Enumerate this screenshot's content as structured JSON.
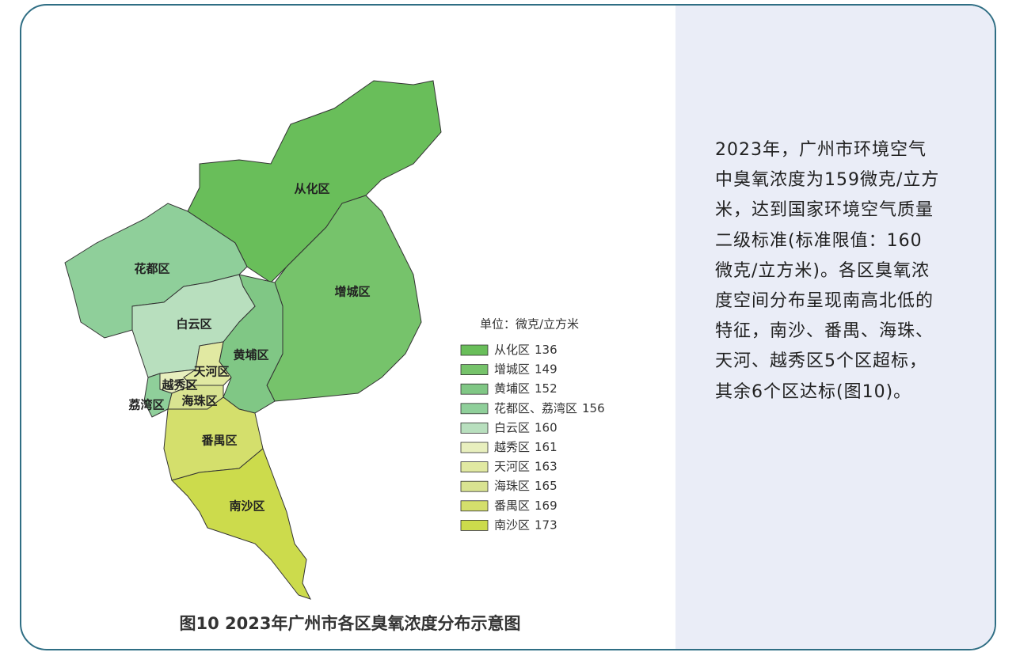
{
  "regions": [
    {
      "name": "从化区",
      "color": "#69be5a"
    },
    {
      "name": "增城区",
      "color": "#76c36b"
    },
    {
      "name": "黄埔区",
      "color": "#80c785"
    },
    {
      "name": "花都区",
      "color": "#8fcf9a"
    },
    {
      "name": "白云区",
      "color": "#b8dfbe"
    },
    {
      "name": "天河区",
      "color": "#e1e9a2"
    },
    {
      "name": "越秀区",
      "color": "#e8efbe"
    },
    {
      "name": "荔湾区",
      "color": "#8fcf9a"
    },
    {
      "name": "海珠区",
      "color": "#d9e391"
    },
    {
      "name": "番禺区",
      "color": "#d4df6c"
    },
    {
      "name": "南沙区",
      "color": "#ccdb4c"
    }
  ],
  "legend_unit": "单位：微克/立方米",
  "legend": [
    {
      "label": "从化区",
      "value": 136,
      "color": "#69be5a"
    },
    {
      "label": "增城区",
      "value": 149,
      "color": "#76c36b"
    },
    {
      "label": "黄埔区",
      "value": 152,
      "color": "#80c785"
    },
    {
      "label": "花都区、荔湾区",
      "value": 156,
      "color": "#8fcf9a"
    },
    {
      "label": "白云区",
      "value": 160,
      "color": "#b8dfbe"
    },
    {
      "label": "越秀区",
      "value": 161,
      "color": "#e8efbe"
    },
    {
      "label": "天河区",
      "value": 163,
      "color": "#e1e9a2"
    },
    {
      "label": "海珠区",
      "value": 165,
      "color": "#d9e391"
    },
    {
      "label": "番禺区",
      "value": 169,
      "color": "#d4df6c"
    },
    {
      "label": "南沙区",
      "value": 173,
      "color": "#ccdb4c"
    }
  ],
  "caption": "图10  2023年广州市各区臭氧浓度分布示意图",
  "description": [
    "2023年，广州市环境空气",
    "中臭氧浓度为159微克/立方",
    "米，达到国家环境空气质量",
    "二级标准(标准限值：160",
    "微克/立方米)。各区臭氧浓",
    "度空间分布呈现南高北低的",
    "特征，南沙、番禺、海珠、",
    "天河、越秀区5个区超标，",
    "其余6个区达标(图10)。"
  ]
}
